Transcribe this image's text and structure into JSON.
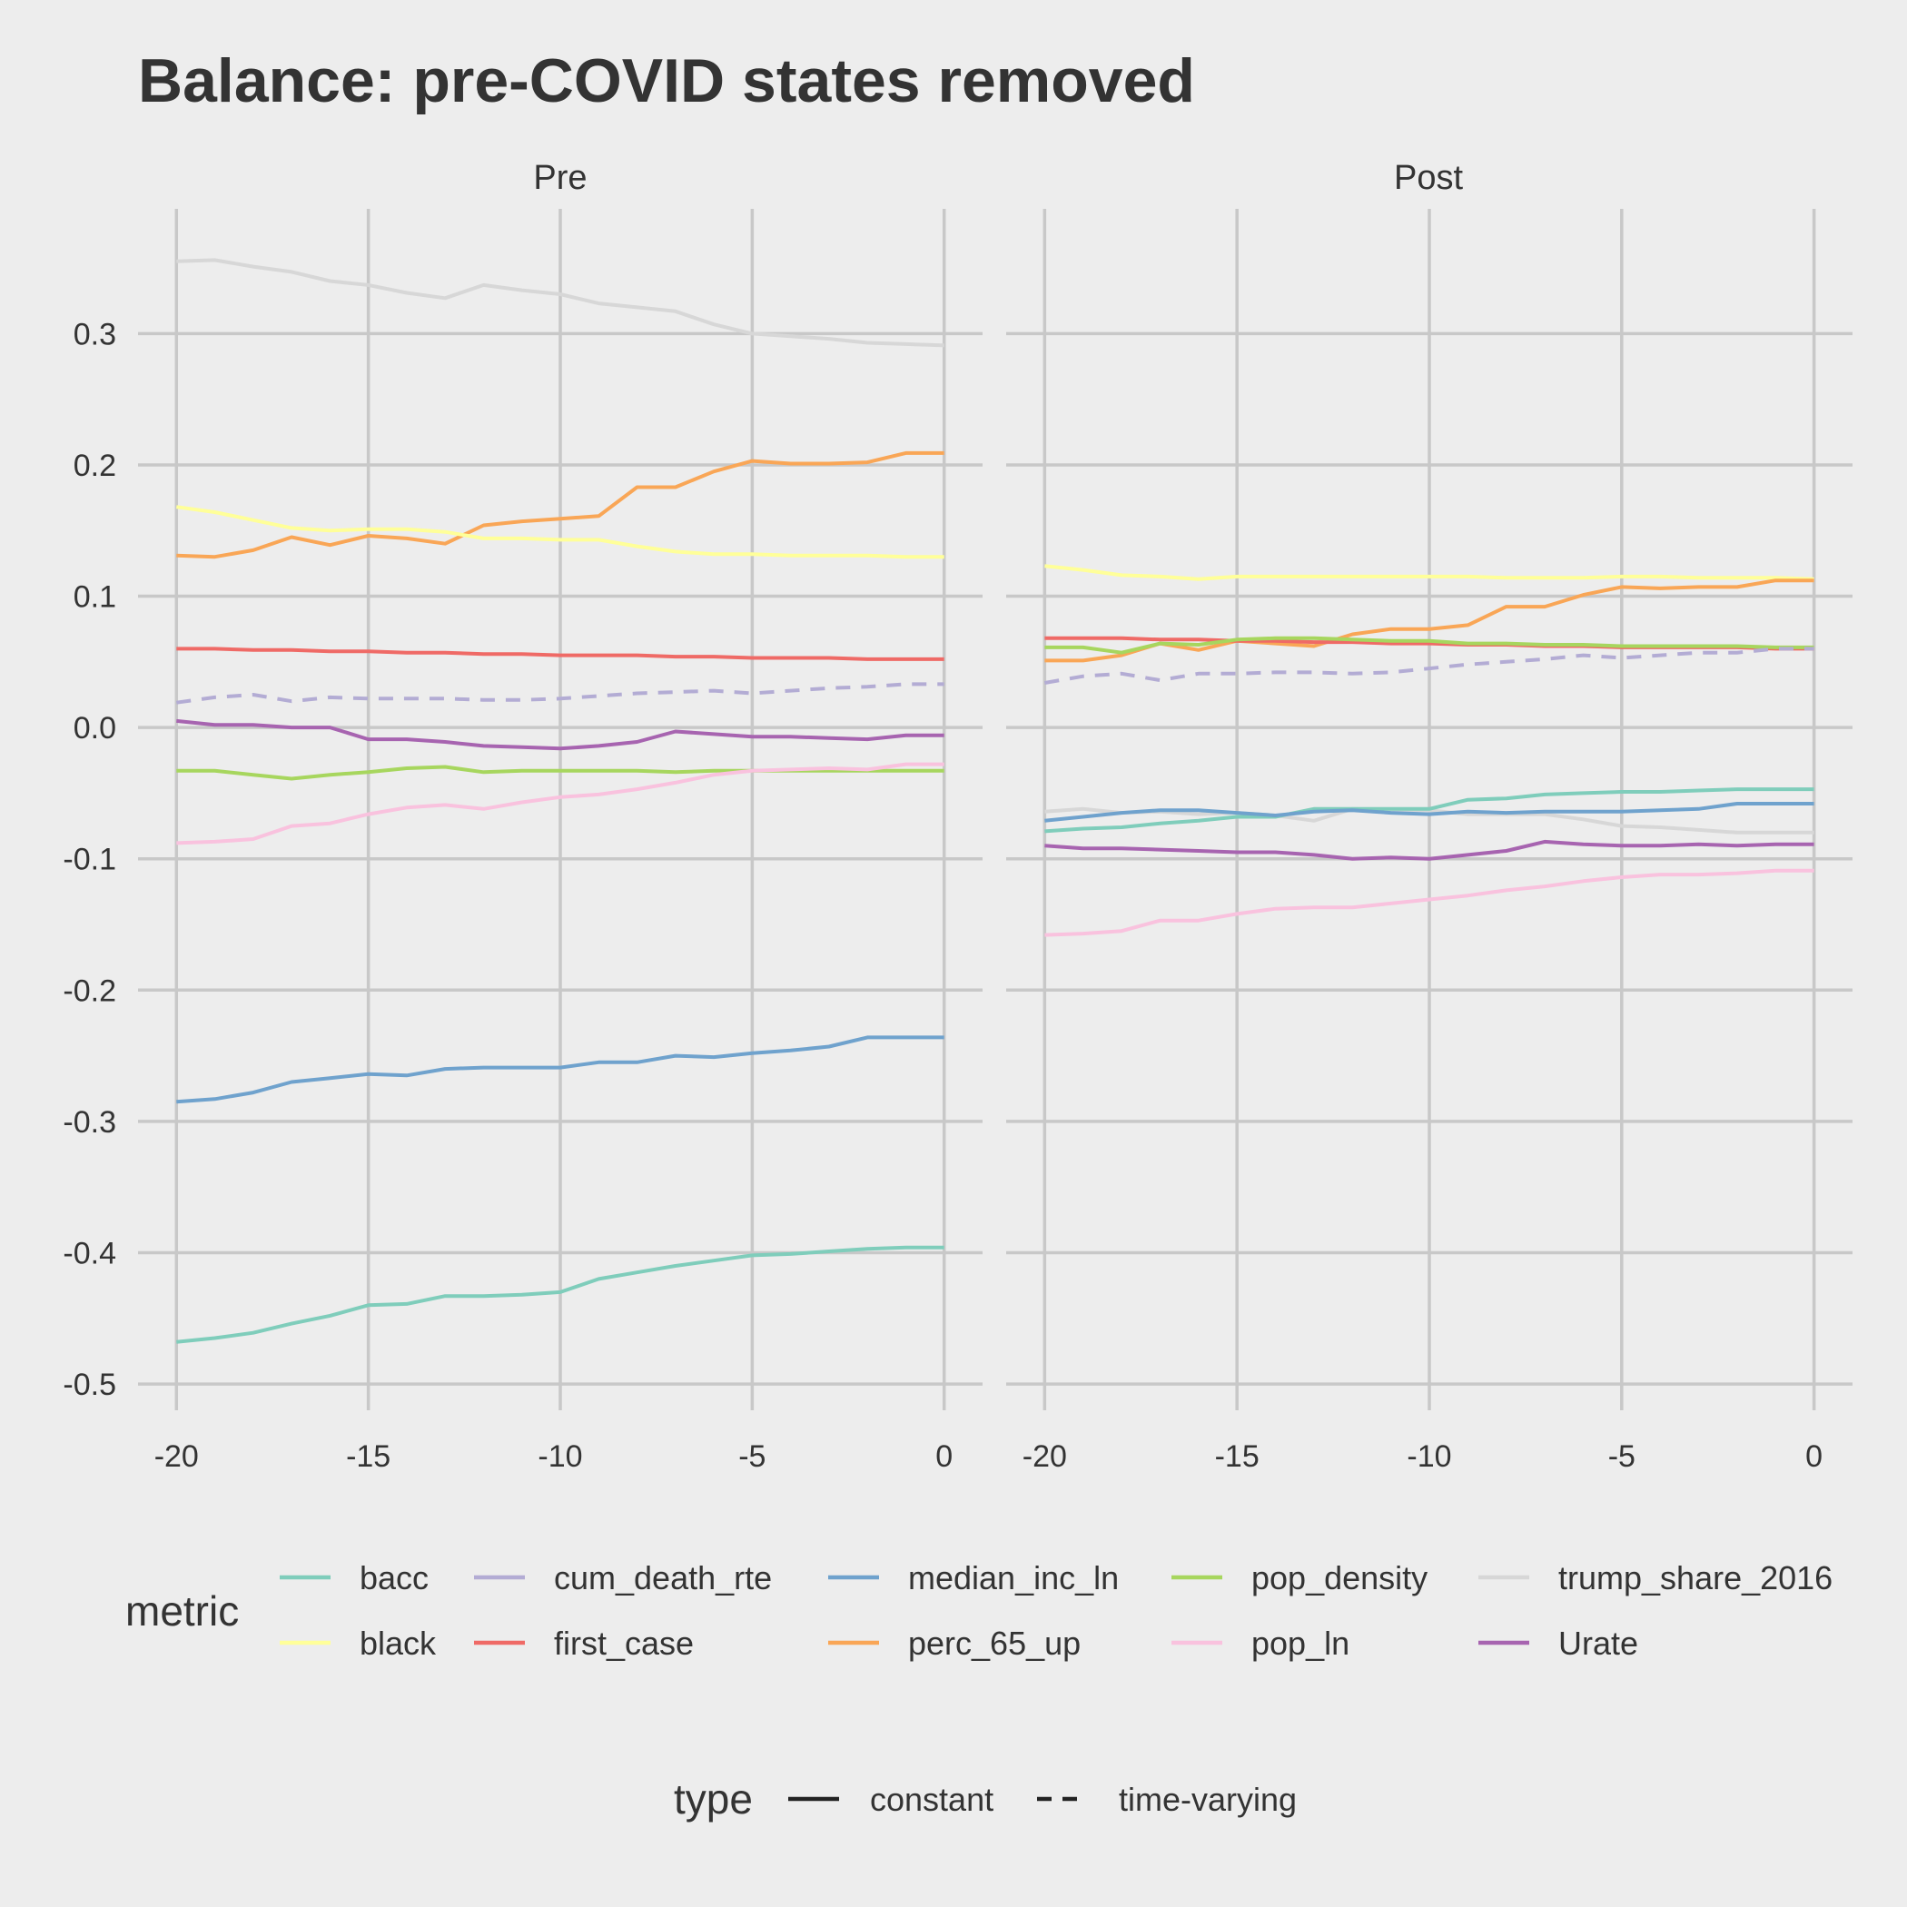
{
  "chart_data": {
    "type": "line",
    "title": "Balance: pre-COVID states removed",
    "xlabel": "",
    "ylabel": "",
    "xlim": [
      -21,
      1
    ],
    "ylim": [
      -0.52,
      0.395
    ],
    "x_ticks": [
      -20,
      -15,
      -10,
      -5,
      0
    ],
    "x_tick_labels": [
      "-20",
      "-15",
      "-10",
      "-5",
      "0"
    ],
    "y_ticks": [
      -0.5,
      -0.4,
      -0.3,
      -0.2,
      -0.1,
      0.0,
      0.1,
      0.2,
      0.3
    ],
    "y_tick_labels": [
      "-0.5",
      "-0.4",
      "-0.3",
      "-0.2",
      "-0.1",
      "0.0",
      "0.1",
      "0.2",
      "0.3"
    ],
    "grid": true,
    "legend_placement": "bottom",
    "x": [
      -20,
      -19,
      -18,
      -17,
      -16,
      -15,
      -14,
      -13,
      -12,
      -11,
      -10,
      -9,
      -8,
      -7,
      -6,
      -5,
      -4,
      -3,
      -2,
      -1,
      0
    ],
    "facets": [
      {
        "label": "Pre",
        "series": [
          {
            "name": "trump_share_2016",
            "values": [
              0.355,
              0.356,
              0.351,
              0.347,
              0.34,
              0.337,
              0.331,
              0.327,
              0.337,
              0.333,
              0.33,
              0.323,
              0.32,
              0.317,
              0.307,
              0.3,
              0.298,
              0.296,
              0.293,
              0.292,
              0.291
            ]
          },
          {
            "name": "perc_65_up",
            "values": [
              0.131,
              0.13,
              0.135,
              0.145,
              0.139,
              0.146,
              0.144,
              0.14,
              0.154,
              0.157,
              0.159,
              0.161,
              0.183,
              0.183,
              0.195,
              0.203,
              0.201,
              0.201,
              0.202,
              0.209,
              0.209
            ]
          },
          {
            "name": "black",
            "values": [
              0.168,
              0.164,
              0.158,
              0.152,
              0.15,
              0.151,
              0.151,
              0.149,
              0.144,
              0.144,
              0.143,
              0.143,
              0.138,
              0.134,
              0.132,
              0.132,
              0.131,
              0.131,
              0.131,
              0.13,
              0.13
            ]
          },
          {
            "name": "first_case",
            "values": [
              0.06,
              0.06,
              0.059,
              0.059,
              0.058,
              0.058,
              0.057,
              0.057,
              0.056,
              0.056,
              0.055,
              0.055,
              0.055,
              0.054,
              0.054,
              0.053,
              0.053,
              0.053,
              0.052,
              0.052,
              0.052
            ]
          },
          {
            "name": "cum_death_rte",
            "values": [
              0.019,
              0.023,
              0.025,
              0.02,
              0.023,
              0.022,
              0.022,
              0.022,
              0.021,
              0.021,
              0.022,
              0.024,
              0.026,
              0.027,
              0.028,
              0.026,
              0.028,
              0.03,
              0.031,
              0.033,
              0.033
            ]
          },
          {
            "name": "Urate",
            "values": [
              0.005,
              0.002,
              0.002,
              0.0,
              0.0,
              -0.009,
              -0.009,
              -0.011,
              -0.014,
              -0.015,
              -0.016,
              -0.014,
              -0.011,
              -0.003,
              -0.005,
              -0.007,
              -0.007,
              -0.008,
              -0.009,
              -0.006,
              -0.006
            ]
          },
          {
            "name": "pop_density",
            "values": [
              -0.033,
              -0.033,
              -0.036,
              -0.039,
              -0.036,
              -0.034,
              -0.031,
              -0.03,
              -0.034,
              -0.033,
              -0.033,
              -0.033,
              -0.033,
              -0.034,
              -0.033,
              -0.033,
              -0.033,
              -0.033,
              -0.033,
              -0.033,
              -0.033
            ]
          },
          {
            "name": "pop_ln",
            "values": [
              -0.088,
              -0.087,
              -0.085,
              -0.075,
              -0.073,
              -0.066,
              -0.061,
              -0.059,
              -0.062,
              -0.057,
              -0.053,
              -0.051,
              -0.047,
              -0.042,
              -0.036,
              -0.033,
              -0.032,
              -0.031,
              -0.032,
              -0.028,
              -0.028
            ]
          },
          {
            "name": "median_inc_ln",
            "values": [
              -0.285,
              -0.283,
              -0.278,
              -0.27,
              -0.267,
              -0.264,
              -0.265,
              -0.26,
              -0.259,
              -0.259,
              -0.259,
              -0.255,
              -0.255,
              -0.25,
              -0.251,
              -0.248,
              -0.246,
              -0.243,
              -0.236,
              -0.236,
              -0.236
            ]
          },
          {
            "name": "bacc",
            "values": [
              -0.468,
              -0.465,
              -0.461,
              -0.454,
              -0.448,
              -0.44,
              -0.439,
              -0.433,
              -0.433,
              -0.432,
              -0.43,
              -0.42,
              -0.415,
              -0.41,
              -0.406,
              -0.402,
              -0.401,
              -0.399,
              -0.397,
              -0.396,
              -0.396
            ]
          }
        ]
      },
      {
        "label": "Post",
        "series": [
          {
            "name": "black",
            "values": [
              0.123,
              0.12,
              0.116,
              0.115,
              0.113,
              0.115,
              0.115,
              0.115,
              0.115,
              0.115,
              0.115,
              0.115,
              0.114,
              0.114,
              0.114,
              0.115,
              0.115,
              0.114,
              0.114,
              0.114,
              0.113
            ]
          },
          {
            "name": "perc_65_up",
            "values": [
              0.051,
              0.051,
              0.055,
              0.064,
              0.059,
              0.066,
              0.064,
              0.062,
              0.071,
              0.075,
              0.075,
              0.078,
              0.092,
              0.092,
              0.101,
              0.107,
              0.106,
              0.107,
              0.107,
              0.112,
              0.112
            ]
          },
          {
            "name": "first_case",
            "values": [
              0.068,
              0.068,
              0.068,
              0.067,
              0.067,
              0.066,
              0.066,
              0.065,
              0.065,
              0.064,
              0.064,
              0.063,
              0.063,
              0.062,
              0.062,
              0.061,
              0.061,
              0.061,
              0.061,
              0.06,
              0.06
            ]
          },
          {
            "name": "pop_density",
            "values": [
              0.061,
              0.061,
              0.057,
              0.064,
              0.063,
              0.067,
              0.068,
              0.068,
              0.067,
              0.066,
              0.066,
              0.064,
              0.064,
              0.063,
              0.063,
              0.062,
              0.062,
              0.062,
              0.062,
              0.061,
              0.061
            ]
          },
          {
            "name": "cum_death_rte",
            "values": [
              0.034,
              0.039,
              0.041,
              0.036,
              0.041,
              0.041,
              0.042,
              0.042,
              0.041,
              0.042,
              0.045,
              0.048,
              0.05,
              0.052,
              0.055,
              0.053,
              0.055,
              0.057,
              0.057,
              0.06,
              0.06
            ]
          },
          {
            "name": "trump_share_2016",
            "values": [
              -0.064,
              -0.062,
              -0.065,
              -0.064,
              -0.066,
              -0.065,
              -0.067,
              -0.071,
              -0.062,
              -0.063,
              -0.063,
              -0.066,
              -0.066,
              -0.066,
              -0.07,
              -0.075,
              -0.076,
              -0.078,
              -0.08,
              -0.08,
              -0.08
            ]
          },
          {
            "name": "bacc",
            "values": [
              -0.079,
              -0.077,
              -0.076,
              -0.073,
              -0.071,
              -0.068,
              -0.068,
              -0.062,
              -0.062,
              -0.062,
              -0.062,
              -0.055,
              -0.054,
              -0.051,
              -0.05,
              -0.049,
              -0.049,
              -0.048,
              -0.047,
              -0.047,
              -0.047
            ]
          },
          {
            "name": "median_inc_ln",
            "values": [
              -0.071,
              -0.068,
              -0.065,
              -0.063,
              -0.063,
              -0.065,
              -0.067,
              -0.064,
              -0.063,
              -0.065,
              -0.066,
              -0.064,
              -0.065,
              -0.064,
              -0.064,
              -0.064,
              -0.063,
              -0.062,
              -0.058,
              -0.058,
              -0.058
            ]
          },
          {
            "name": "Urate",
            "values": [
              -0.09,
              -0.092,
              -0.092,
              -0.093,
              -0.094,
              -0.095,
              -0.095,
              -0.097,
              -0.1,
              -0.099,
              -0.1,
              -0.097,
              -0.094,
              -0.087,
              -0.089,
              -0.09,
              -0.09,
              -0.089,
              -0.09,
              -0.089,
              -0.089
            ]
          },
          {
            "name": "pop_ln",
            "values": [
              -0.158,
              -0.157,
              -0.155,
              -0.147,
              -0.147,
              -0.142,
              -0.138,
              -0.137,
              -0.137,
              -0.134,
              -0.131,
              -0.128,
              -0.124,
              -0.121,
              -0.117,
              -0.114,
              -0.112,
              -0.112,
              -0.111,
              -0.109,
              -0.109
            ]
          }
        ]
      }
    ]
  },
  "legend": {
    "metric": {
      "title": "metric",
      "items": [
        {
          "name": "bacc",
          "color": "#7fcdbb",
          "type": "constant"
        },
        {
          "name": "black",
          "color": "#ffff99",
          "type": "constant"
        },
        {
          "name": "cum_death_rte",
          "color": "#b3acd4",
          "type": "time-varying"
        },
        {
          "name": "first_case",
          "color": "#ef6a66",
          "type": "constant"
        },
        {
          "name": "median_inc_ln",
          "color": "#6fa2cd",
          "type": "constant"
        },
        {
          "name": "perc_65_up",
          "color": "#f9a656",
          "type": "constant"
        },
        {
          "name": "pop_density",
          "color": "#a7d65e",
          "type": "constant"
        },
        {
          "name": "pop_ln",
          "color": "#f9c2de",
          "type": "constant"
        },
        {
          "name": "trump_share_2016",
          "color": "#d7d7d7",
          "type": "constant"
        },
        {
          "name": "Urate",
          "color": "#a764b0",
          "type": "constant"
        }
      ]
    },
    "type": {
      "title": "type",
      "items": [
        {
          "name": "constant",
          "style": "solid"
        },
        {
          "name": "time-varying",
          "style": "dashed"
        }
      ]
    }
  }
}
